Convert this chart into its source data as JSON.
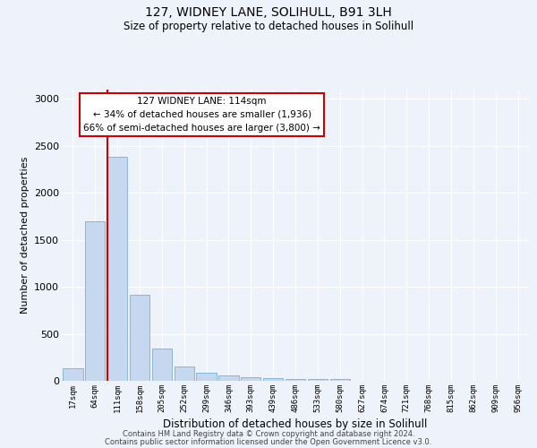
{
  "title1": "127, WIDNEY LANE, SOLIHULL, B91 3LH",
  "title2": "Size of property relative to detached houses in Solihull",
  "xlabel": "Distribution of detached houses by size in Solihull",
  "ylabel": "Number of detached properties",
  "bin_labels": [
    "17sqm",
    "64sqm",
    "111sqm",
    "158sqm",
    "205sqm",
    "252sqm",
    "299sqm",
    "346sqm",
    "393sqm",
    "439sqm",
    "486sqm",
    "533sqm",
    "580sqm",
    "627sqm",
    "674sqm",
    "721sqm",
    "768sqm",
    "815sqm",
    "862sqm",
    "909sqm",
    "956sqm"
  ],
  "bar_heights": [
    130,
    1700,
    2380,
    920,
    340,
    155,
    90,
    55,
    35,
    25,
    20,
    15,
    20,
    0,
    0,
    0,
    0,
    0,
    0,
    0,
    0
  ],
  "bar_color": "#c5d8f0",
  "bar_edge_color": "#7aaed6",
  "vline_x_index": 2,
  "vline_color": "#cc0000",
  "ylim": [
    0,
    3100
  ],
  "yticks": [
    0,
    500,
    1000,
    1500,
    2000,
    2500,
    3000
  ],
  "annotation_text": "127 WIDNEY LANE: 114sqm\n← 34% of detached houses are smaller (1,936)\n66% of semi-detached houses are larger (3,800) →",
  "annotation_box_facecolor": "#ffffff",
  "annotation_box_edgecolor": "#cc0000",
  "footer_text1": "Contains HM Land Registry data © Crown copyright and database right 2024.",
  "footer_text2": "Contains public sector information licensed under the Open Government Licence v3.0.",
  "background_color": "#eef2fa",
  "plot_bg_color": "#eef2fa",
  "grid_color": "#ffffff",
  "title1_fontsize": 10,
  "title2_fontsize": 8.5
}
